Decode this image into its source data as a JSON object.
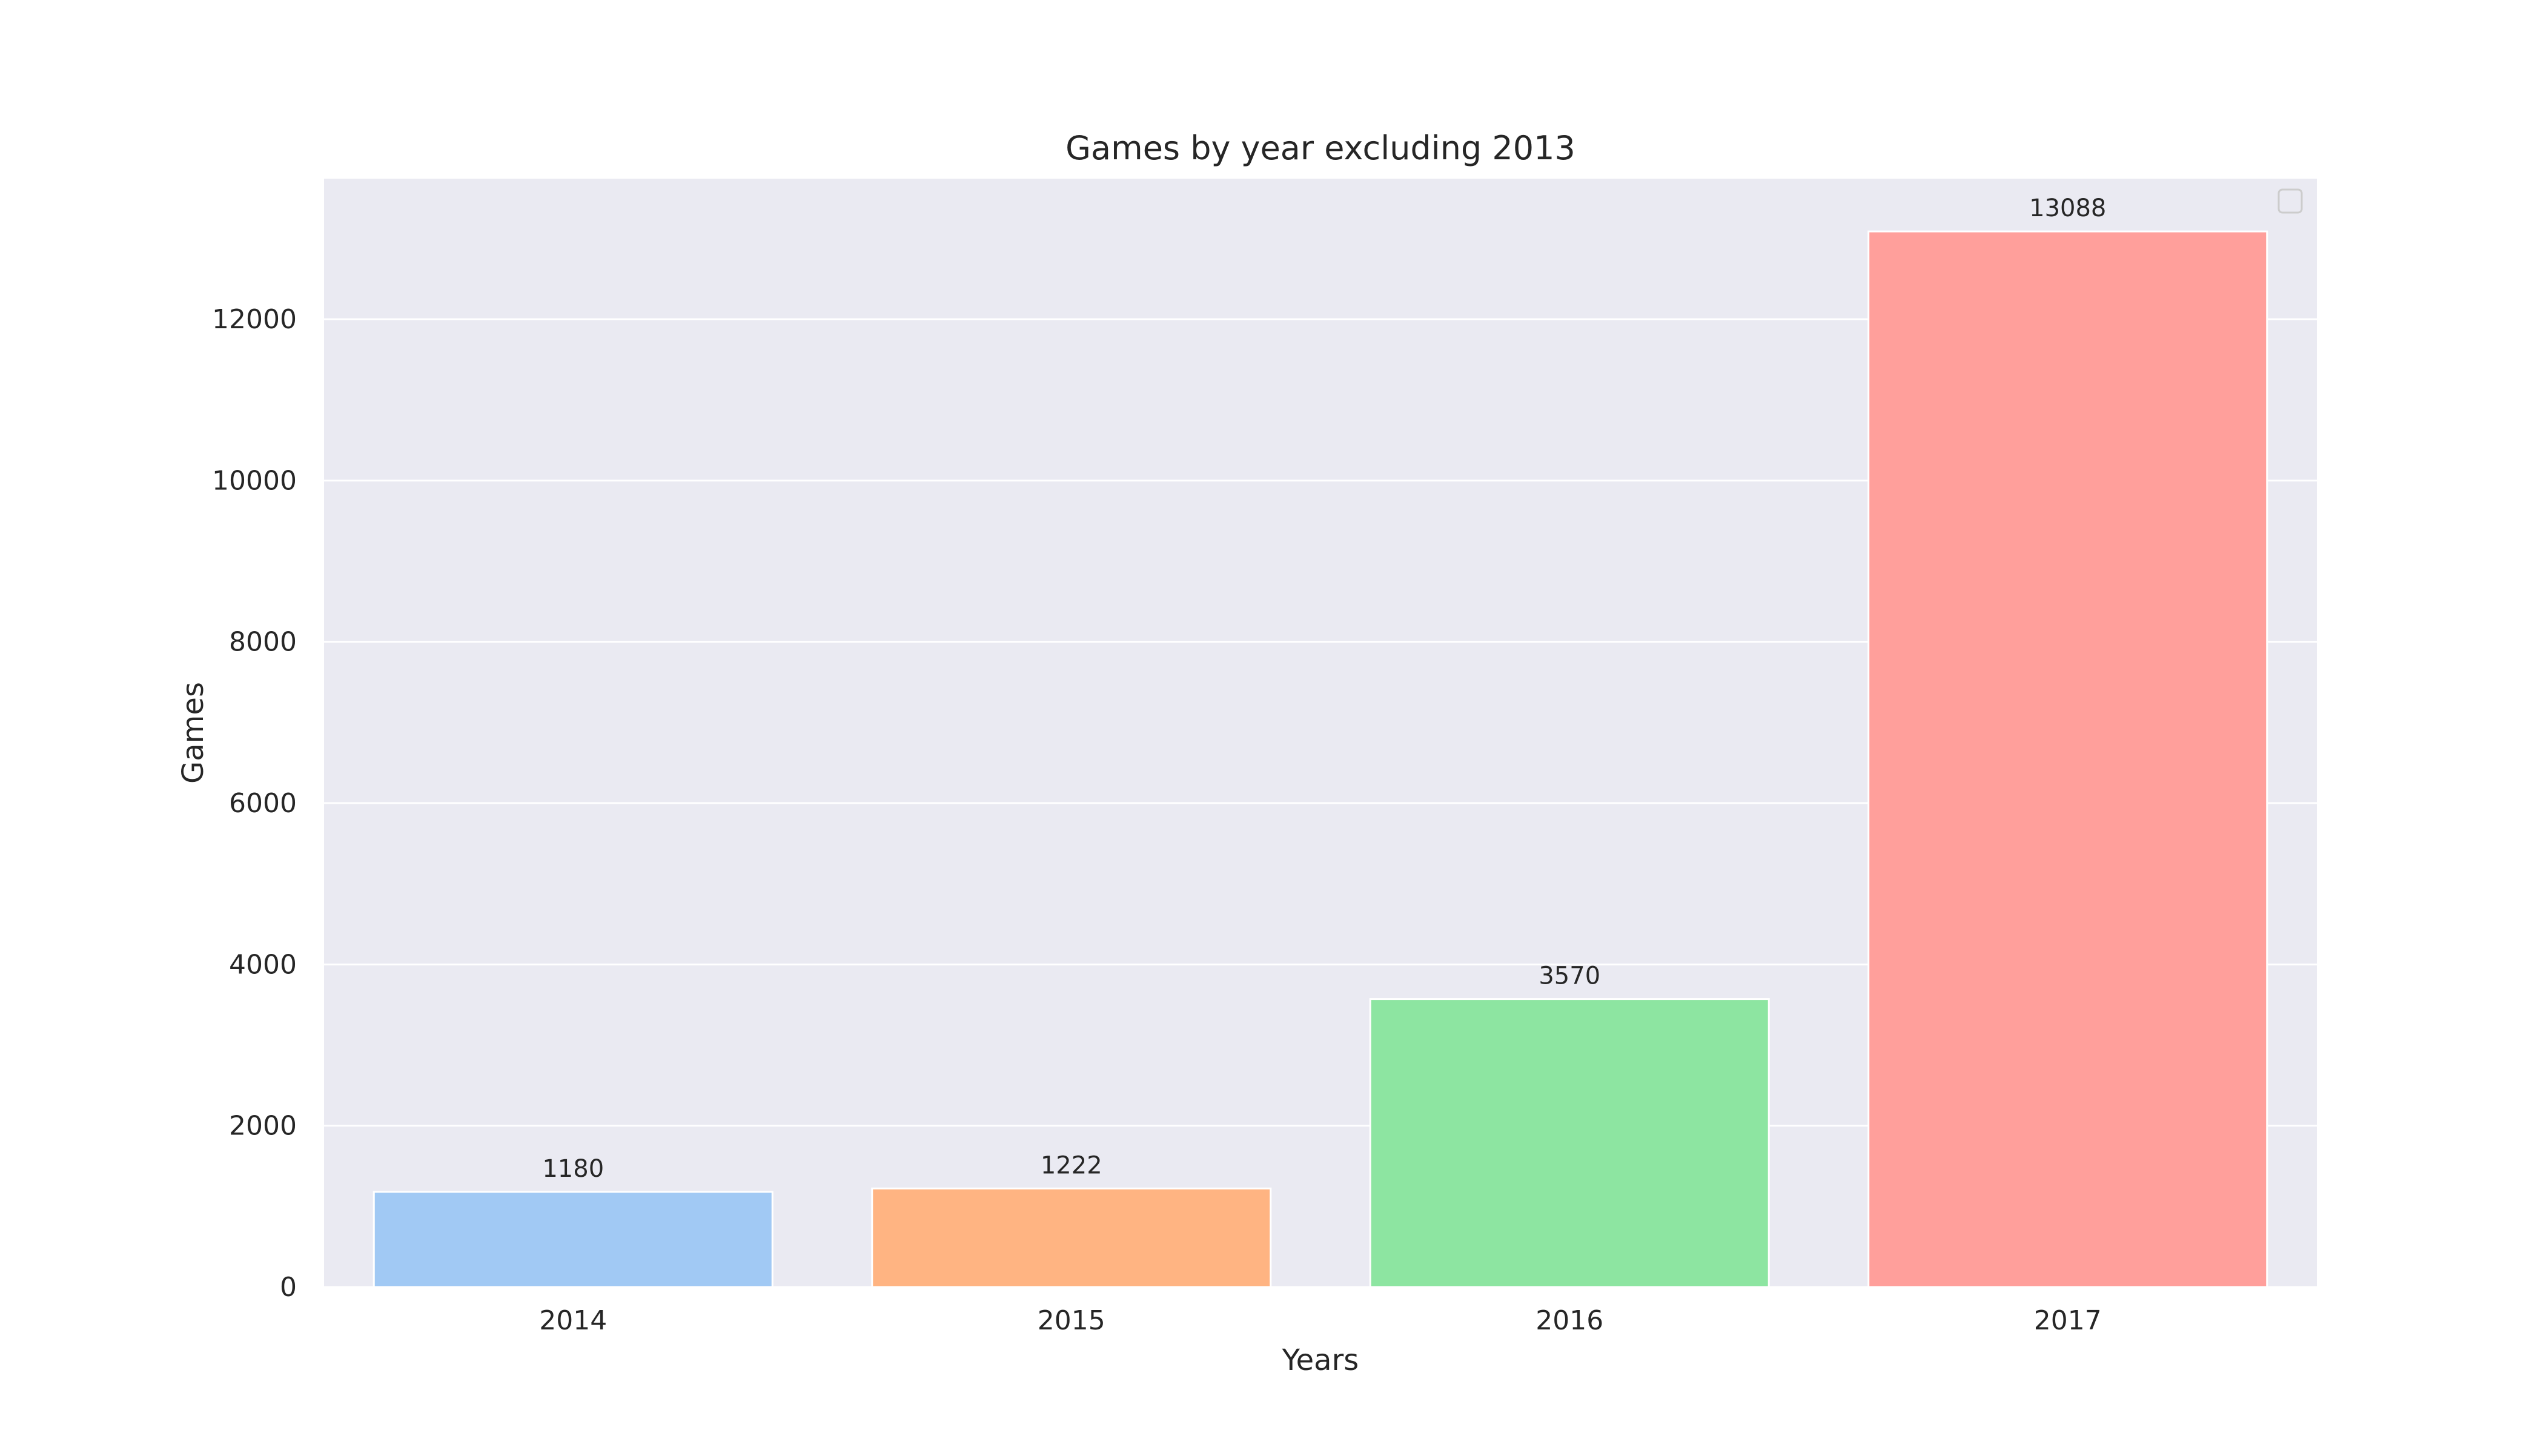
{
  "chart_data": {
    "type": "bar",
    "title": "Games by year excluding 2013",
    "xlabel": "Years",
    "ylabel": "Games",
    "categories": [
      "2014",
      "2015",
      "2016",
      "2017"
    ],
    "values": [
      1180,
      1222,
      3570,
      13088
    ],
    "data_labels": [
      "1180",
      "1222",
      "3570",
      "13088"
    ],
    "colors": [
      "#a1c9f4",
      "#ffb482",
      "#8de5a1",
      "#ff9f9b"
    ],
    "ylim": [
      0,
      13742
    ],
    "yticks": [
      0,
      2000,
      4000,
      6000,
      8000,
      10000,
      12000
    ],
    "ytick_labels": [
      "0",
      "2000",
      "4000",
      "6000",
      "8000",
      "10000",
      "12000"
    ],
    "grid": true,
    "legend": "top-right (empty)",
    "background_color": "#eaeaf2",
    "grid_color": "#ffffff"
  }
}
